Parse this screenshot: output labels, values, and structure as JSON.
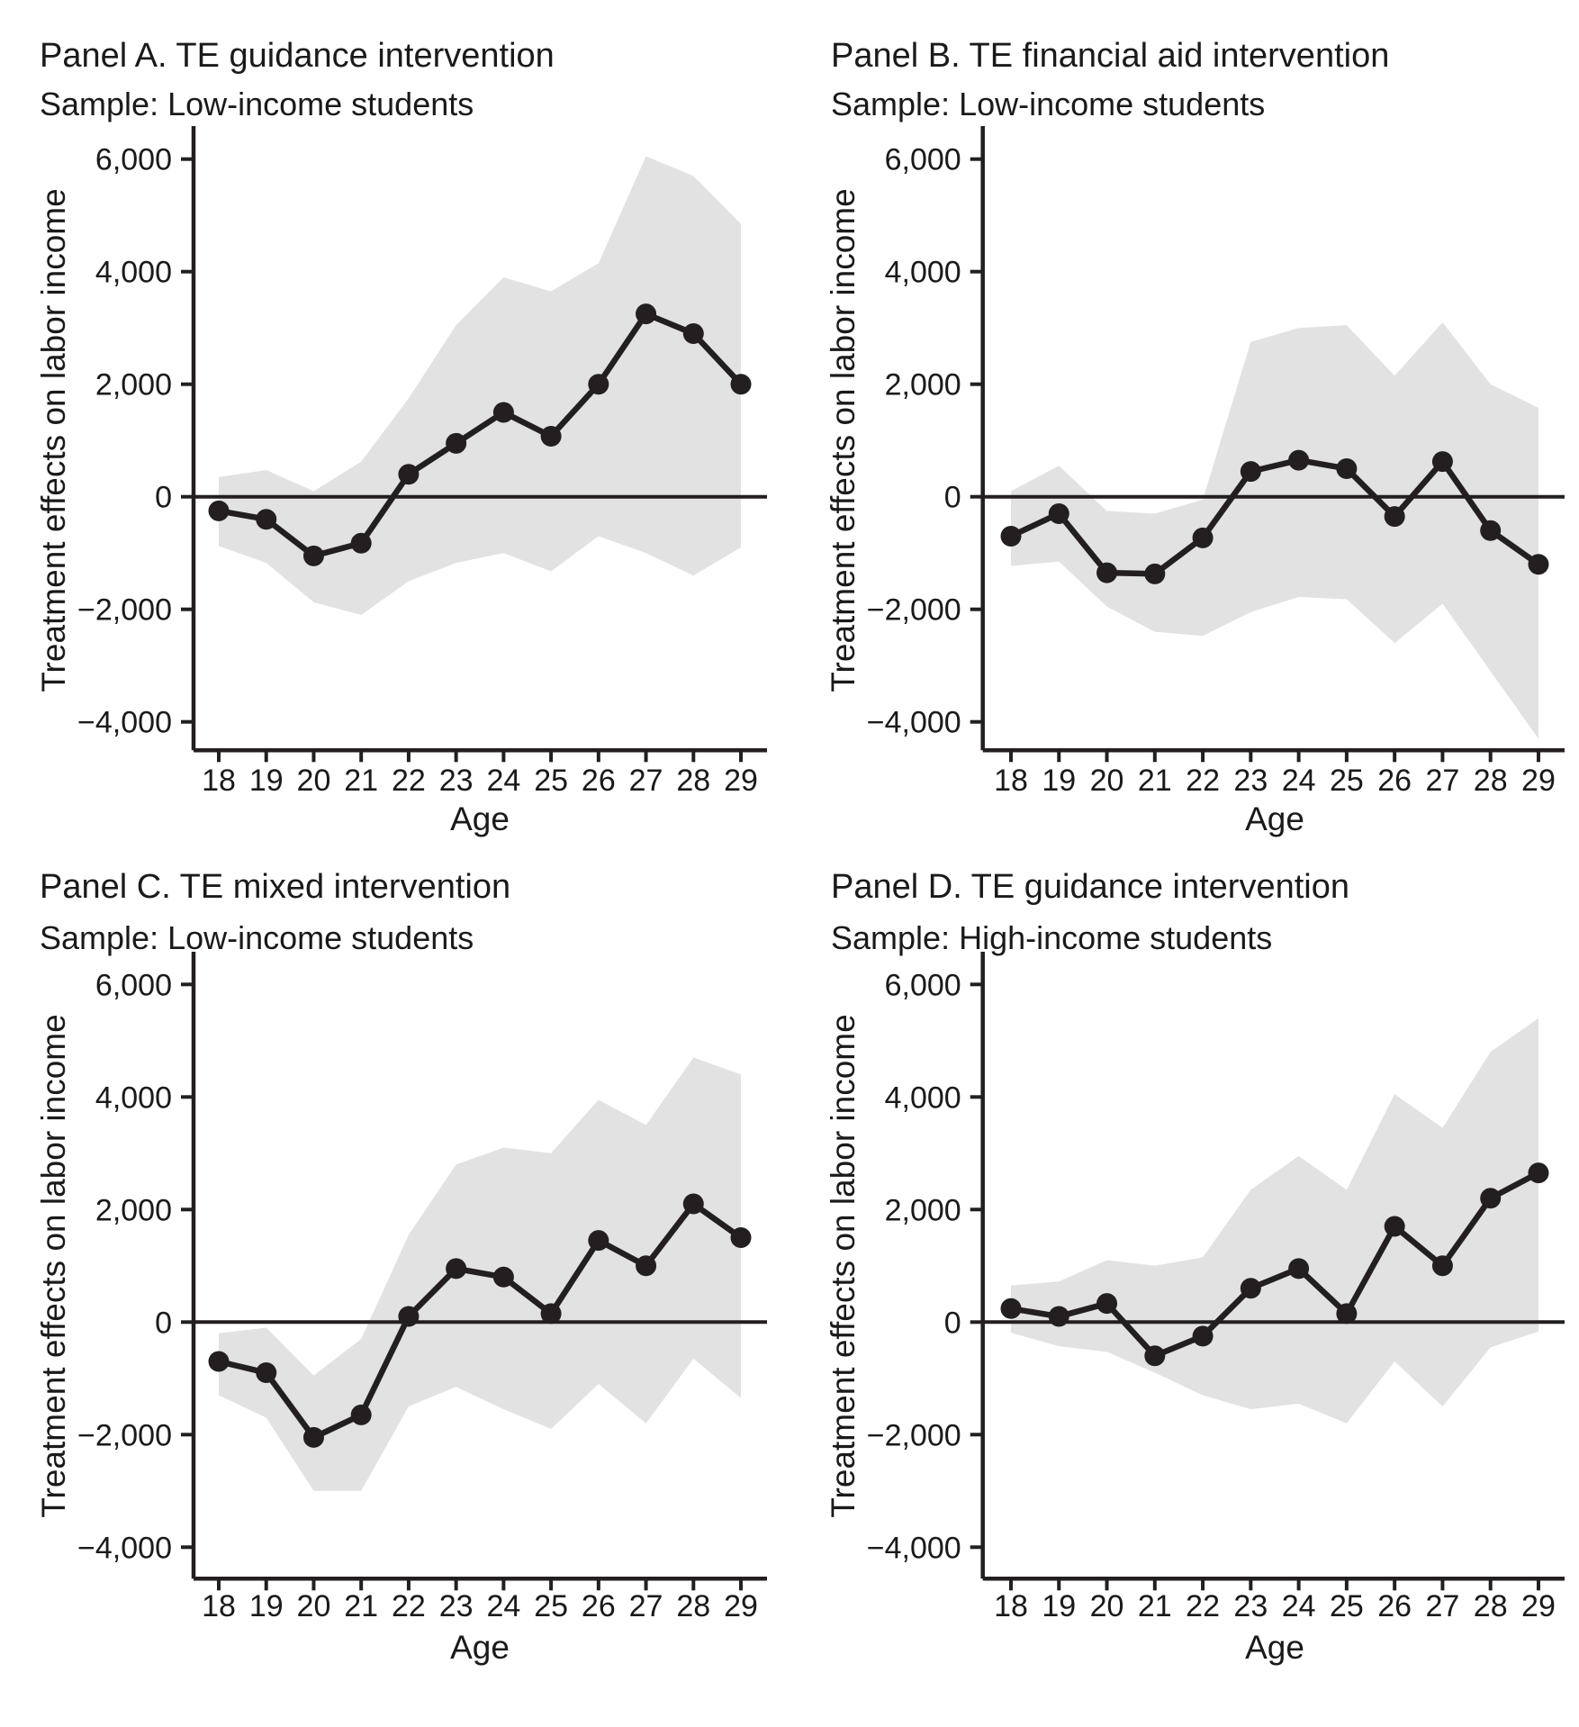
{
  "page": {
    "background": "#ffffff"
  },
  "style": {
    "ink": "#231f20",
    "band_color": "#e2e2e2",
    "text_color": "#1a1a1a"
  },
  "chart_data": [
    {
      "type": "line",
      "panel": "A",
      "title": "Panel A. TE guidance intervention",
      "subtitle": "Sample: Low-income students",
      "ylabel": "Treatment effects on labor income",
      "xlabel": "Age",
      "x": [
        18,
        19,
        20,
        21,
        22,
        23,
        24,
        25,
        26,
        27,
        28,
        29
      ],
      "values": [
        -250,
        -400,
        -1050,
        -825,
        400,
        950,
        1500,
        1075,
        2000,
        3250,
        2900,
        2000
      ],
      "band_lower": [
        -875,
        -1175,
        -1875,
        -2100,
        -1500,
        -1175,
        -1000,
        -1325,
        -700,
        -1000,
        -1400,
        -900
      ],
      "band_upper": [
        350,
        475,
        100,
        625,
        1750,
        3050,
        3900,
        3650,
        4150,
        6050,
        5700,
        4850
      ],
      "band_meaning": "shaded confidence interval",
      "yticks": [
        6000,
        4000,
        2000,
        0,
        -2000,
        -4000
      ],
      "ytick_labels": [
        "6,000",
        "4,000",
        "2,000",
        "0",
        "−2,000",
        "−4,000"
      ],
      "ylim": [
        -4500,
        6600
      ],
      "grid": false,
      "legend": null
    },
    {
      "type": "line",
      "panel": "B",
      "title": "Panel B. TE financial aid intervention",
      "subtitle": "Sample: Low-income students",
      "ylabel": "Treatment effects on labor income",
      "xlabel": "Age",
      "x": [
        18,
        19,
        20,
        21,
        22,
        23,
        24,
        25,
        26,
        27,
        28,
        29
      ],
      "values": [
        -700,
        -300,
        -1350,
        -1370,
        -730,
        450,
        650,
        500,
        -350,
        625,
        -600,
        -1200
      ],
      "band_lower": [
        -1230,
        -1150,
        -1950,
        -2400,
        -2470,
        -2050,
        -1780,
        -1820,
        -2600,
        -1900,
        -3100,
        -4300
      ],
      "band_upper": [
        100,
        550,
        -250,
        -300,
        -50,
        2750,
        3000,
        3050,
        2150,
        3100,
        2000,
        1580
      ],
      "band_meaning": "shaded confidence interval",
      "yticks": [
        6000,
        4000,
        2000,
        0,
        -2000,
        -4000
      ],
      "ytick_labels": [
        "6,000",
        "4,000",
        "2,000",
        "0",
        "−2,000",
        "−4,000"
      ],
      "ylim": [
        -4500,
        6600
      ],
      "grid": false,
      "legend": null
    },
    {
      "type": "line",
      "panel": "C",
      "title": "Panel C. TE mixed intervention",
      "subtitle": "Sample: Low-income students",
      "ylabel": "Treatment effects on labor income",
      "xlabel": "Age",
      "x": [
        18,
        19,
        20,
        21,
        22,
        23,
        24,
        25,
        26,
        27,
        28,
        29
      ],
      "values": [
        -700,
        -900,
        -2050,
        -1650,
        100,
        950,
        800,
        150,
        1450,
        1000,
        2100,
        1500
      ],
      "band_lower": [
        -1300,
        -1700,
        -3000,
        -3000,
        -1500,
        -1150,
        -1550,
        -1900,
        -1100,
        -1800,
        -650,
        -1350
      ],
      "band_upper": [
        -200,
        -100,
        -950,
        -300,
        1550,
        2800,
        3100,
        3000,
        3950,
        3500,
        4700,
        4400
      ],
      "band_meaning": "shaded confidence interval",
      "yticks": [
        6000,
        4000,
        2000,
        0,
        -2000,
        -4000
      ],
      "ytick_labels": [
        "6,000",
        "4,000",
        "2,000",
        "0",
        "−2,000",
        "−4,000"
      ],
      "ylim": [
        -4500,
        6600
      ],
      "grid": false,
      "legend": null
    },
    {
      "type": "line",
      "panel": "D",
      "title": "Panel D. TE guidance intervention",
      "subtitle": "Sample: High-income students",
      "ylabel": "Treatment effects on labor income",
      "xlabel": "Age",
      "x": [
        18,
        19,
        20,
        21,
        22,
        23,
        24,
        25,
        26,
        27,
        28,
        29
      ],
      "values": [
        240,
        100,
        330,
        -600,
        -250,
        600,
        950,
        150,
        1700,
        1000,
        2200,
        2650
      ],
      "band_lower": [
        -190,
        -430,
        -530,
        -900,
        -1300,
        -1550,
        -1450,
        -1800,
        -700,
        -1500,
        -450,
        -170
      ],
      "band_upper": [
        650,
        720,
        1100,
        1000,
        1150,
        2350,
        2950,
        2350,
        4050,
        3450,
        4800,
        5400
      ],
      "band_meaning": "shaded confidence interval",
      "yticks": [
        6000,
        4000,
        2000,
        0,
        -2000,
        -4000
      ],
      "ytick_labels": [
        "6,000",
        "4,000",
        "2,000",
        "0",
        "−2,000",
        "−4,000"
      ],
      "ylim": [
        -4500,
        6600
      ],
      "grid": false,
      "legend": null
    }
  ]
}
